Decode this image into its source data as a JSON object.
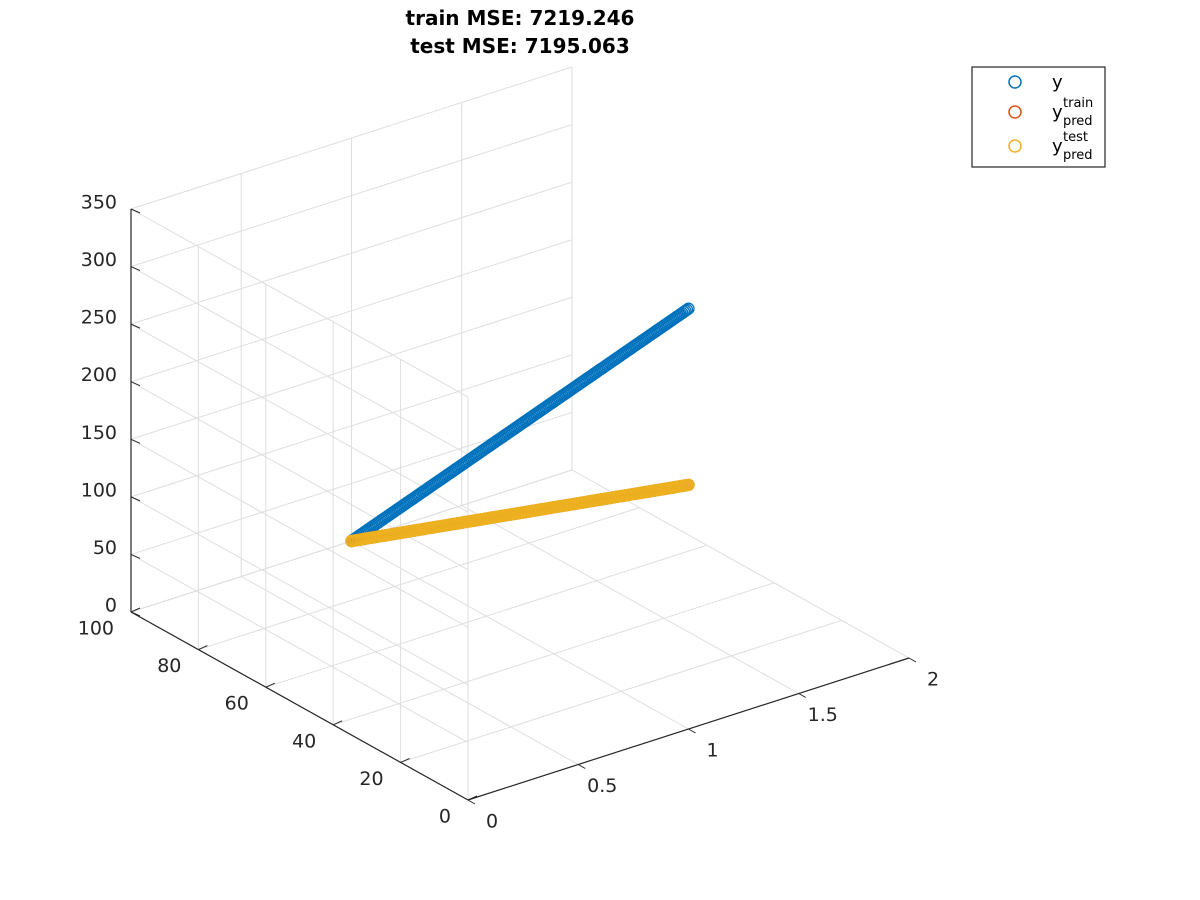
{
  "figure": {
    "title_line1": "train MSE: 7219.246",
    "title_line2": "test MSE: 7195.063"
  },
  "legend": {
    "entries": [
      {
        "base": "y",
        "sup": "",
        "sub": "",
        "color": "#0072BD"
      },
      {
        "base": "y",
        "sup": "train",
        "sub": "pred",
        "color": "#D95319"
      },
      {
        "base": "y",
        "sup": "test",
        "sub": "pred",
        "color": "#EDB120"
      }
    ],
    "placement": "top-right (outside axes)"
  },
  "chart_data": {
    "type": "scatter",
    "projection": "3d",
    "grid": true,
    "xlim": [
      0,
      2
    ],
    "ylim": [
      0,
      100
    ],
    "zlim": [
      0,
      350
    ],
    "x_ticks": [
      "0",
      "0.5",
      "1",
      "1.5",
      "2"
    ],
    "y_ticks": [
      "0",
      "20",
      "40",
      "60",
      "80",
      "100"
    ],
    "z_ticks": [
      "0",
      "50",
      "100",
      "150",
      "200",
      "250",
      "300",
      "350"
    ],
    "series": [
      {
        "name": "y",
        "color": "#0072BD",
        "x": 1,
        "y_range": [
          0,
          100
        ],
        "z_range": [
          0,
          365
        ]
      },
      {
        "name": "y_pred^train",
        "color": "#D95319",
        "x": 1,
        "y_range": [
          0,
          100
        ],
        "z_range": [
          0,
          212
        ]
      },
      {
        "name": "y_pred^test",
        "color": "#EDB120",
        "x": 1,
        "y_range": [
          0,
          100
        ],
        "z_range": [
          0,
          212
        ]
      }
    ]
  }
}
